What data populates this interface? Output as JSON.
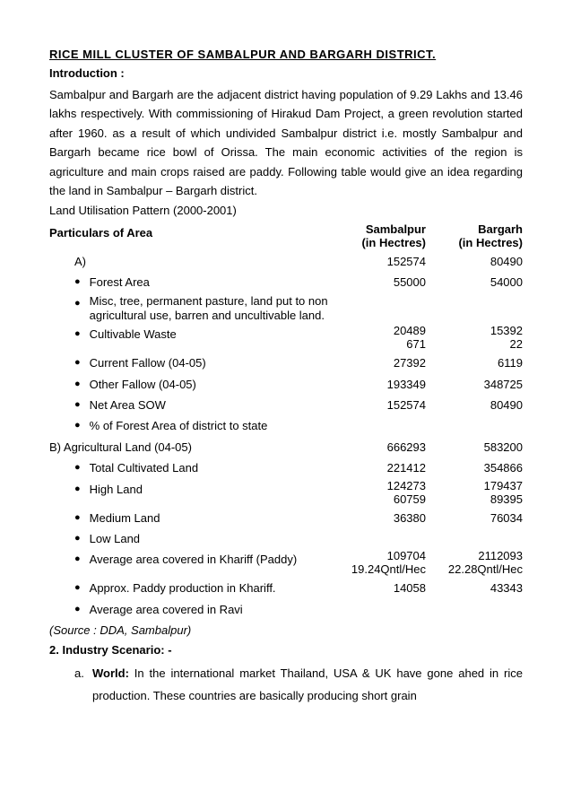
{
  "title": "RICE MILL CLUSTER OF SAMBALPUR AND BARGARH DISTRICT.",
  "introLabel": "Introduction :",
  "introText": "Sambalpur and Bargarh are the adjacent district having population of 9.29 Lakhs and 13.46 lakhs respectively. With commissioning of Hirakud Dam Project, a green revolution started after 1960. as a result of which undivided Sambalpur district i.e. mostly Sambalpur and Bargarh became rice bowl of Orissa. The main economic activities of the region is agriculture and main crops raised are paddy. Following table would give an idea regarding the land in Sambalpur – Bargarh district.",
  "landPattern": "Land Utilisation Pattern (2000-2001)",
  "headers": {
    "particulars": "Particulars of Area",
    "sambalpur": "Sambalpur",
    "sambalpurUnit": "(in Hectres)",
    "bargarh": "Bargarh",
    "bargarhUnit": "(in Hectres)"
  },
  "sectionA": "A)",
  "rowsA": [
    {
      "label": "Forest Area",
      "s": "55000",
      "b": "54000",
      "top_s": "152574",
      "top_b": "80490"
    },
    {
      "label": "Misc, tree, permanent pasture, land put to non agricultural use, barren and uncultivable land.",
      "s": "",
      "b": ""
    },
    {
      "label": "Cultivable Waste",
      "s": "20489",
      "b": "15392",
      "s2": "671",
      "b2": "22"
    },
    {
      "label": "Current Fallow (04-05)",
      "s": "27392",
      "b": "6119"
    },
    {
      "label": "Other Fallow (04-05)",
      "s": "193349",
      "b": "348725"
    },
    {
      "label": "Net Area SOW",
      "s": "152574",
      "b": "80490"
    },
    {
      "label": "% of Forest Area of district to state",
      "s": "",
      "b": ""
    }
  ],
  "sectionB": "B) Agricultural Land (04-05)",
  "sectionB_s": "666293",
  "sectionB_b": "583200",
  "rowsB": [
    {
      "label": "Total Cultivated Land",
      "s": "221412",
      "b": "354866"
    },
    {
      "label": "High Land",
      "s": "124273",
      "b": "179437",
      "s2": "60759",
      "b2": "89395"
    },
    {
      "label": "Medium Land",
      "s": "36380",
      "b": "76034"
    },
    {
      "label": "Low Land",
      "s": "",
      "b": ""
    },
    {
      "label": "Average area covered in Khariff (Paddy)",
      "s": "109704",
      "b": "2112093",
      "s2": "19.24Qntl/Hec",
      "b2": "22.28Qntl/Hec"
    },
    {
      "label": "Approx. Paddy production in Khariff.",
      "s": "14058",
      "b": "43343"
    },
    {
      "label": "Average area covered in Ravi",
      "s": "",
      "b": ""
    }
  ],
  "source": "(Source : DDA, Sambalpur)",
  "scenarioTitle": "2. Industry Scenario: -",
  "scenarioLetter": "a.",
  "scenarioLabel": "World:",
  "scenarioText": " In the international market Thailand, USA & UK have gone ahed in rice production. These countries are basically producing short grain"
}
